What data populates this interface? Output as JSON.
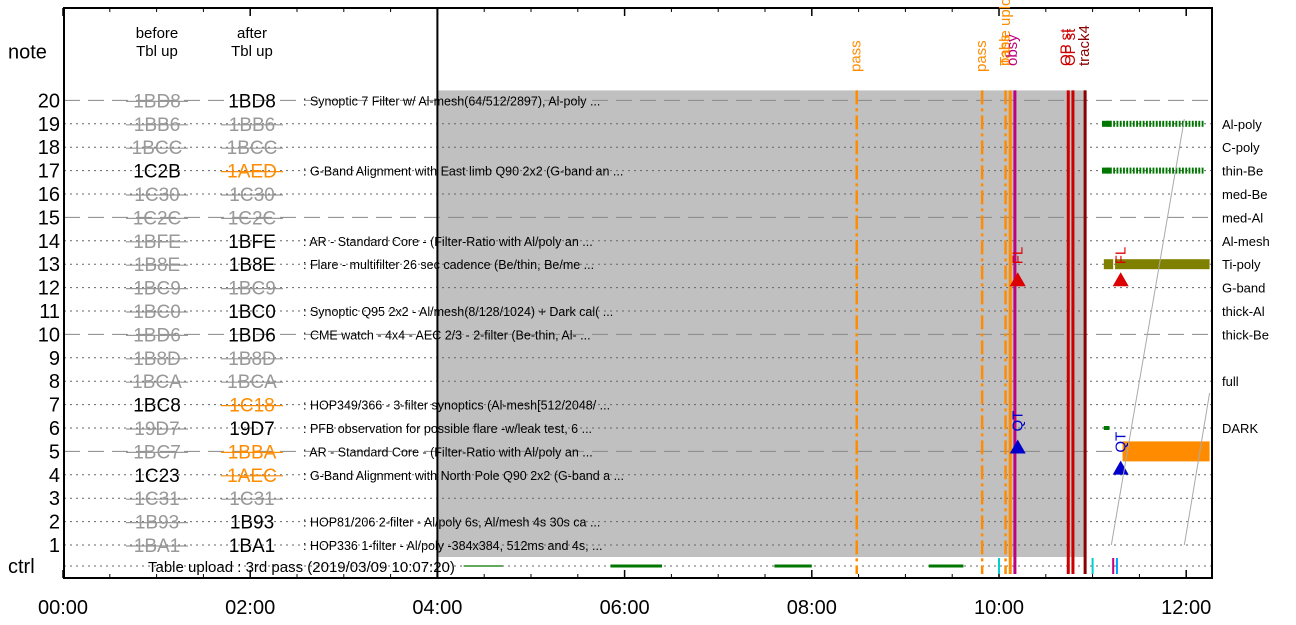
{
  "chart_data": {
    "type": "timeline",
    "header": {
      "note_label": "note",
      "before_label": [
        "before",
        "Tbl up"
      ],
      "after_label": [
        "after",
        "Tbl up"
      ],
      "ctrl_label": "ctrl"
    },
    "x_axis": {
      "range_hours": [
        0,
        12.25
      ],
      "ticks": [
        {
          "hour": 0,
          "label": "00:00"
        },
        {
          "hour": 2,
          "label": "02:00"
        },
        {
          "hour": 4,
          "label": "04:00"
        },
        {
          "hour": 6,
          "label": "06:00"
        },
        {
          "hour": 8,
          "label": "08:00"
        },
        {
          "hour": 10,
          "label": "10:00"
        },
        {
          "hour": 12,
          "label": "12:00"
        }
      ]
    },
    "shaded_period_hours": [
      4,
      10.93
    ],
    "upload_line_hour": 4,
    "rows": [
      {
        "n": 20,
        "before": "1BD8",
        "before_style": "struck",
        "after": "1BD8",
        "after_style": "normal",
        "desc": "Synoptic 7 Filter w/ Al-mesh(64/512/2897), Al-poly ...",
        "filter": "",
        "dashed": true
      },
      {
        "n": 19,
        "before": "1BB6",
        "before_style": "struck",
        "after": "1BB6",
        "after_style": "struck",
        "desc": "",
        "filter": "Al-poly",
        "dashed": false
      },
      {
        "n": 18,
        "before": "1BCC",
        "before_style": "struck",
        "after": "1BCC",
        "after_style": "struck",
        "desc": "",
        "filter": "C-poly",
        "dashed": false
      },
      {
        "n": 17,
        "before": "1C2B",
        "before_style": "normal",
        "after": "1AED",
        "after_style": "changed",
        "desc": "G-Band Alignment with East limb Q90 2x2 (G-band an ...",
        "filter": "thin-Be",
        "dashed": false
      },
      {
        "n": 16,
        "before": "1C30",
        "before_style": "struck",
        "after": "1C30",
        "after_style": "struck",
        "desc": "",
        "filter": "med-Be",
        "dashed": false
      },
      {
        "n": 15,
        "before": "1C2C",
        "before_style": "struck",
        "after": "1C2C",
        "after_style": "struck",
        "desc": "",
        "filter": "med-Al",
        "dashed": true
      },
      {
        "n": 14,
        "before": "1BFE",
        "before_style": "struck",
        "after": "1BFE",
        "after_style": "normal",
        "desc": "AR - Standard Core - (Filter-Ratio with Al/poly an ...",
        "filter": "Al-mesh",
        "dashed": false
      },
      {
        "n": 13,
        "before": "1B8E",
        "before_style": "struck",
        "after": "1B8E",
        "after_style": "normal",
        "desc": "Flare - multifilter 26 sec cadence (Be/thin, Be/me ...",
        "filter": "Ti-poly",
        "dashed": false
      },
      {
        "n": 12,
        "before": "1BC9",
        "before_style": "struck",
        "after": "1BC9",
        "after_style": "struck",
        "desc": "",
        "filter": "G-band",
        "dashed": false
      },
      {
        "n": 11,
        "before": "1BC0",
        "before_style": "struck",
        "after": "1BC0",
        "after_style": "normal",
        "desc": "Synoptic Q95 2x2 - Al/mesh(8/128/1024) + Dark cal( ...",
        "filter": "thick-Al",
        "dashed": false
      },
      {
        "n": 10,
        "before": "1BD6",
        "before_style": "struck",
        "after": "1BD6",
        "after_style": "normal",
        "desc": "CME watch - 4x4 - AEC 2/3 - 2-filter (Be-thin, Al- ...",
        "filter": "thick-Be",
        "dashed": true
      },
      {
        "n": 9,
        "before": "1B8D",
        "before_style": "struck",
        "after": "1B8D",
        "after_style": "struck",
        "desc": "",
        "filter": "",
        "dashed": false
      },
      {
        "n": 8,
        "before": "1BCA",
        "before_style": "struck",
        "after": "1BCA",
        "after_style": "struck",
        "desc": "",
        "filter": "full",
        "dashed": false
      },
      {
        "n": 7,
        "before": "1BC8",
        "before_style": "normal",
        "after": "1C18",
        "after_style": "changed",
        "desc": "HOP349/366 - 3-filter synoptics (Al-mesh[512/2048/ ...",
        "filter": "",
        "dashed": false
      },
      {
        "n": 6,
        "before": "19D7",
        "before_style": "struck",
        "after": "19D7",
        "after_style": "normal",
        "desc": "PFB observation for possible flare -w/leak test, 6 ...",
        "filter": "DARK",
        "dashed": false
      },
      {
        "n": 5,
        "before": "1BC7",
        "before_style": "struck",
        "after": "1BBA",
        "after_style": "changed",
        "desc": "AR - Standard Core - (Filter-Ratio with Al/poly an ...",
        "filter": "",
        "dashed": true
      },
      {
        "n": 4,
        "before": "1C23",
        "before_style": "normal",
        "after": "1AEC",
        "after_style": "changed",
        "desc": "G-Band Alignment with North Pole Q90 2x2 (G-band a ...",
        "filter": "",
        "dashed": false
      },
      {
        "n": 3,
        "before": "1C31",
        "before_style": "struck",
        "after": "1C31",
        "after_style": "struck",
        "desc": "",
        "filter": "",
        "dashed": false
      },
      {
        "n": 2,
        "before": "1B93",
        "before_style": "struck",
        "after": "1B93",
        "after_style": "normal",
        "desc": "HOP81/206 2-filter - Al/poly 6s, Al/mesh 4s 30s ca ...",
        "filter": "",
        "dashed": false
      },
      {
        "n": 1,
        "before": "1BA1",
        "before_style": "struck",
        "after": "1BA1",
        "after_style": "normal",
        "desc": "HOP336 1-filter - Al/poly -384x384, 512ms and 4s, ...",
        "filter": "",
        "dashed": false
      }
    ],
    "ctrl_note": "Table upload : 3rd pass (2019/03/09 10:07:20)",
    "events": [
      {
        "hour": 8.48,
        "label": "pass",
        "color": "#ff8c00",
        "style": "dashdot"
      },
      {
        "hour": 9.82,
        "label": "pass",
        "color": "#ff8c00",
        "style": "dashdot"
      },
      {
        "hour": 10.07,
        "label": "pass",
        "color": "#ff8c00",
        "style": "dashdot"
      },
      {
        "hour": 10.12,
        "label": "Table upload",
        "color": "#ff8c00",
        "style": "solid"
      },
      {
        "hour": 10.17,
        "label": "obsy",
        "color": "#c0007f",
        "style": "solid"
      },
      {
        "hour": 10.74,
        "label": "OP st",
        "color": "#cc0000",
        "style": "solid"
      },
      {
        "hour": 10.79,
        "label": "OP st",
        "color": "#cc0000",
        "style": "solid"
      },
      {
        "hour": 10.92,
        "label": "track4",
        "color": "#8b0000",
        "style": "solid"
      }
    ],
    "markers": [
      {
        "label": "FL",
        "hour": 10.2,
        "row": 12.4,
        "color": "#dd0000"
      },
      {
        "label": "FL",
        "hour": 11.3,
        "row": 12.4,
        "color": "#dd0000"
      },
      {
        "label": "QT",
        "hour": 10.2,
        "row": 5.25,
        "color": "#0000cc"
      },
      {
        "label": "QT",
        "hour": 11.3,
        "row": 4.35,
        "color": "#0000cc"
      }
    ],
    "colors": {
      "changed": "#ff8c00",
      "struck": "#999999",
      "shade": "#c0c0c0",
      "filter_green": "#007700",
      "olive": "#808000",
      "orange": "#ff8c00"
    }
  }
}
